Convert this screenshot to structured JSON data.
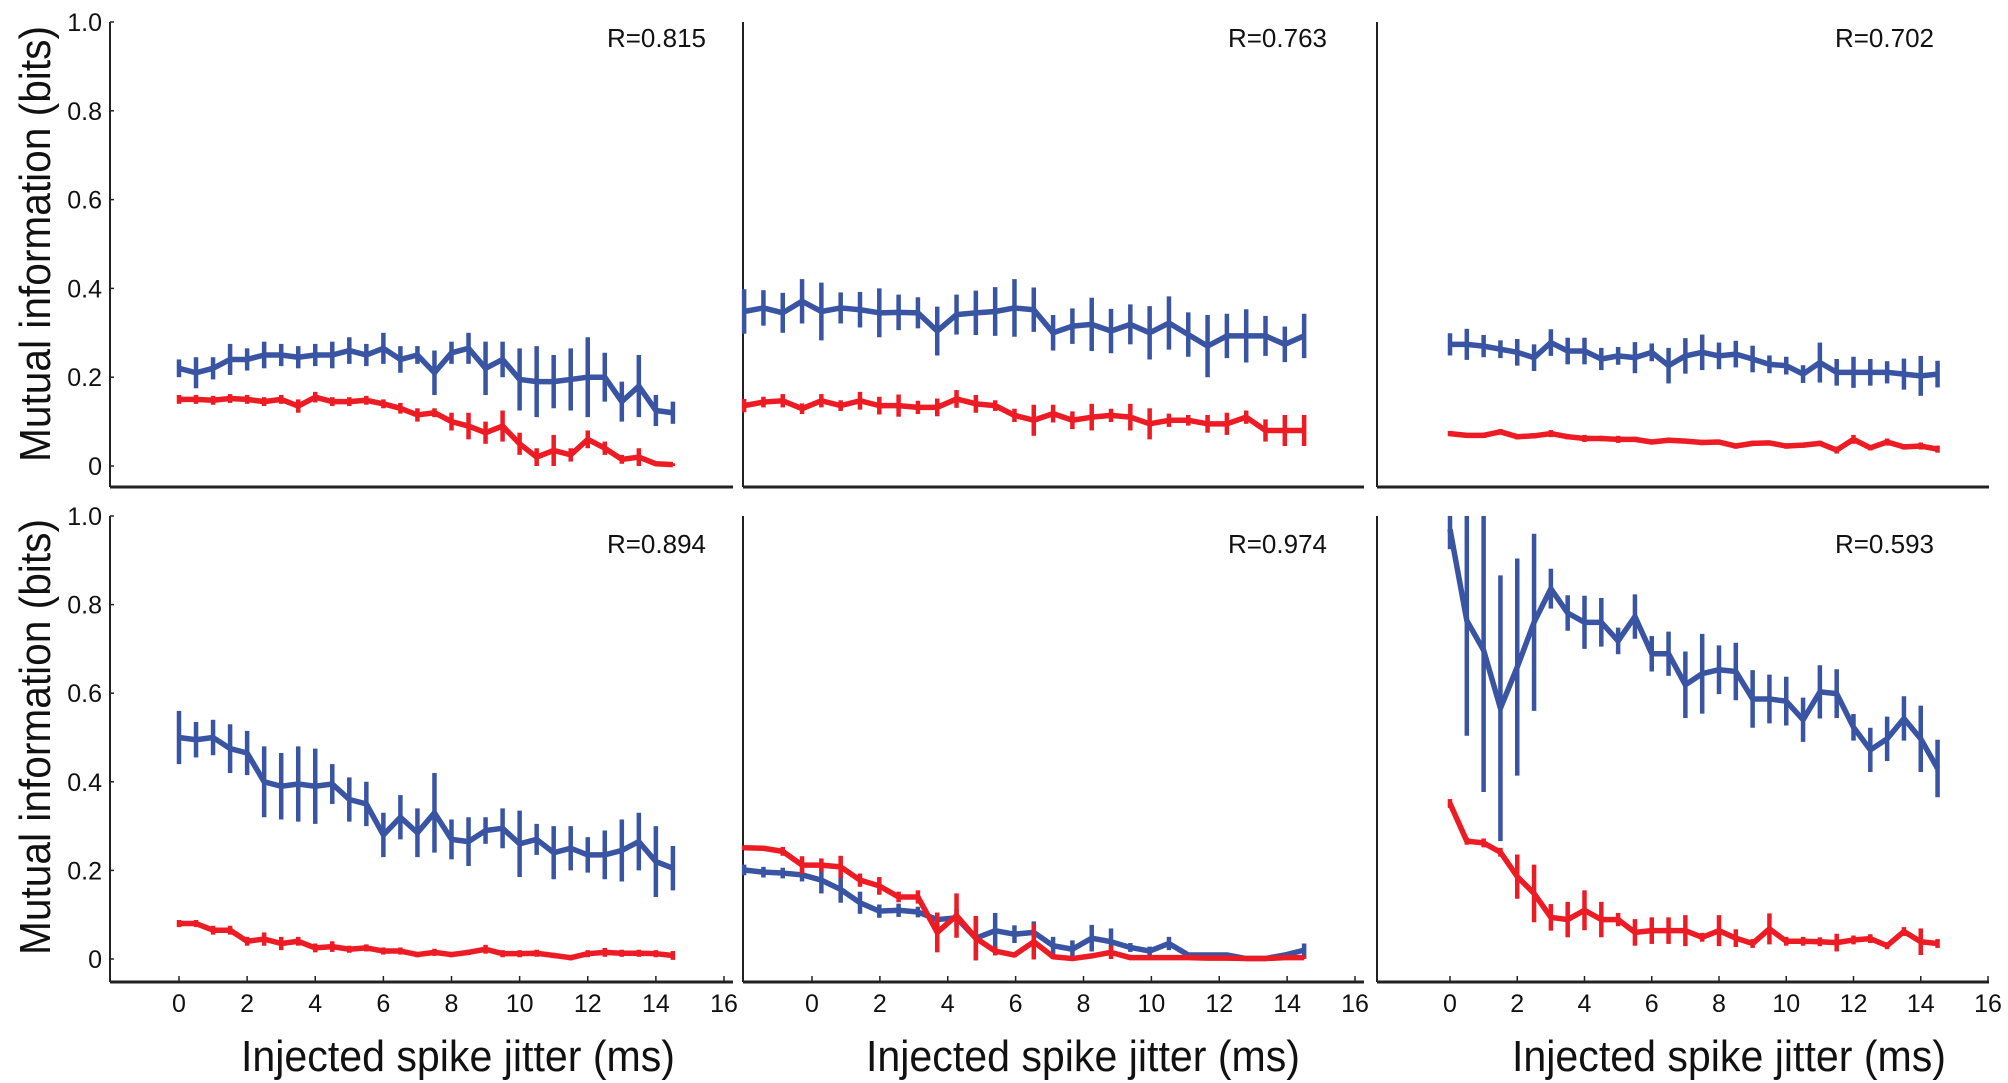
{
  "chart_data": {
    "type": "line",
    "ylabel": "Mutual information (bits)",
    "xlabel": "Injected spike jitter (ms)",
    "ylim": [
      0,
      1.0
    ],
    "xlim": [
      0,
      16
    ],
    "yticks": [
      "1.0",
      "0.8",
      "0.6",
      "0.4",
      "0.2",
      "0"
    ],
    "ytick_values": [
      1.0,
      0.8,
      0.6,
      0.4,
      0.2,
      0
    ],
    "xticks": [
      "0",
      "2",
      "4",
      "6",
      "8",
      "10",
      "12",
      "14",
      "16"
    ],
    "xtick_values": [
      0,
      2,
      4,
      6,
      8,
      10,
      12,
      14,
      16
    ],
    "grid": false,
    "colors": {
      "blue": "#3a54a4",
      "red": "#ed1c24"
    },
    "panels": [
      {
        "annotation": "R=0.815",
        "x_start": 0,
        "x_step": 0.5,
        "series": [
          {
            "name": "blue",
            "color": "#3a54a4",
            "values": [
              0.22,
              0.21,
              0.22,
              0.24,
              0.24,
              0.25,
              0.25,
              0.245,
              0.25,
              0.25,
              0.26,
              0.25,
              0.265,
              0.24,
              0.25,
              0.21,
              0.255,
              0.265,
              0.22,
              0.24,
              0.195,
              0.19,
              0.19,
              0.195,
              0.2,
              0.2,
              0.145,
              0.18,
              0.125,
              0.12
            ],
            "errors": [
              0.02,
              0.035,
              0.025,
              0.035,
              0.025,
              0.03,
              0.025,
              0.025,
              0.025,
              0.03,
              0.03,
              0.025,
              0.035,
              0.03,
              0.02,
              0.05,
              0.025,
              0.035,
              0.06,
              0.04,
              0.07,
              0.08,
              0.06,
              0.07,
              0.09,
              0.055,
              0.045,
              0.07,
              0.035,
              0.025
            ]
          },
          {
            "name": "red",
            "color": "#ed1c24",
            "values": [
              0.15,
              0.15,
              0.148,
              0.152,
              0.15,
              0.145,
              0.15,
              0.135,
              0.155,
              0.145,
              0.145,
              0.148,
              0.14,
              0.13,
              0.115,
              0.12,
              0.1,
              0.09,
              0.075,
              0.09,
              0.05,
              0.02,
              0.035,
              0.025,
              0.06,
              0.04,
              0.015,
              0.02,
              0.005,
              0.003
            ],
            "errors": [
              0.01,
              0.01,
              0.01,
              0.01,
              0.01,
              0.01,
              0.01,
              0.015,
              0.012,
              0.01,
              0.01,
              0.01,
              0.01,
              0.012,
              0.015,
              0.01,
              0.02,
              0.03,
              0.025,
              0.035,
              0.025,
              0.02,
              0.035,
              0.015,
              0.02,
              0.015,
              0.01,
              0.02,
              0.005,
              0.003
            ]
          }
        ]
      },
      {
        "annotation": "R=0.763",
        "x_start": -2,
        "x_step": 0.569,
        "series": [
          {
            "name": "blue",
            "color": "#3a54a4",
            "values": [
              0.348,
              0.356,
              0.345,
              0.371,
              0.348,
              0.356,
              0.352,
              0.345,
              0.346,
              0.345,
              0.304,
              0.341,
              0.345,
              0.348,
              0.356,
              0.352,
              0.3,
              0.315,
              0.319,
              0.304,
              0.319,
              0.3,
              0.322,
              0.296,
              0.27,
              0.293,
              0.293,
              0.293,
              0.274,
              0.293
            ],
            "errors": [
              0.05,
              0.04,
              0.045,
              0.05,
              0.065,
              0.035,
              0.04,
              0.055,
              0.04,
              0.035,
              0.055,
              0.045,
              0.05,
              0.055,
              0.065,
              0.05,
              0.04,
              0.04,
              0.06,
              0.05,
              0.045,
              0.06,
              0.06,
              0.05,
              0.07,
              0.05,
              0.06,
              0.045,
              0.04,
              0.05
            ]
          },
          {
            "name": "red",
            "color": "#ed1c24",
            "values": [
              0.136,
              0.144,
              0.147,
              0.129,
              0.147,
              0.136,
              0.147,
              0.136,
              0.136,
              0.132,
              0.132,
              0.151,
              0.14,
              0.136,
              0.114,
              0.103,
              0.118,
              0.103,
              0.11,
              0.114,
              0.11,
              0.095,
              0.103,
              0.103,
              0.095,
              0.095,
              0.11,
              0.08,
              0.08,
              0.08
            ],
            "errors": [
              0.015,
              0.012,
              0.015,
              0.012,
              0.015,
              0.012,
              0.02,
              0.02,
              0.025,
              0.015,
              0.02,
              0.02,
              0.02,
              0.012,
              0.015,
              0.035,
              0.02,
              0.02,
              0.03,
              0.015,
              0.03,
              0.035,
              0.015,
              0.012,
              0.02,
              0.025,
              0.015,
              0.025,
              0.035,
              0.035
            ]
          }
        ]
      },
      {
        "annotation": "R=0.702",
        "x_start": 0,
        "x_step": 0.5,
        "series": [
          {
            "name": "blue",
            "color": "#3a54a4",
            "values": [
              0.274,
              0.274,
              0.27,
              0.263,
              0.256,
              0.244,
              0.278,
              0.259,
              0.259,
              0.241,
              0.248,
              0.244,
              0.256,
              0.226,
              0.248,
              0.256,
              0.248,
              0.252,
              0.241,
              0.229,
              0.226,
              0.207,
              0.233,
              0.211,
              0.211,
              0.211,
              0.211,
              0.207,
              0.203,
              0.207
            ],
            "errors": [
              0.025,
              0.035,
              0.025,
              0.02,
              0.03,
              0.03,
              0.03,
              0.03,
              0.03,
              0.025,
              0.02,
              0.035,
              0.02,
              0.04,
              0.04,
              0.04,
              0.03,
              0.03,
              0.03,
              0.02,
              0.02,
              0.02,
              0.045,
              0.03,
              0.035,
              0.03,
              0.025,
              0.035,
              0.045,
              0.03
            ]
          },
          {
            "name": "red",
            "color": "#ed1c24",
            "values": [
              0.073,
              0.069,
              0.069,
              0.077,
              0.066,
              0.068,
              0.073,
              0.066,
              0.062,
              0.062,
              0.06,
              0.06,
              0.054,
              0.058,
              0.056,
              0.053,
              0.054,
              0.045,
              0.051,
              0.052,
              0.045,
              0.047,
              0.051,
              0.036,
              0.06,
              0.041,
              0.054,
              0.043,
              0.045,
              0.038
            ],
            "errors": [
              0.006,
              0.005,
              0.006,
              0.006,
              0.006,
              0.006,
              0.008,
              0.006,
              0.008,
              0.006,
              0.008,
              0.006,
              0.005,
              0.006,
              0.005,
              0.006,
              0.005,
              0.006,
              0.006,
              0.005,
              0.006,
              0.006,
              0.006,
              0.008,
              0.01,
              0.006,
              0.008,
              0.006,
              0.008,
              0.008
            ]
          }
        ]
      },
      {
        "annotation": "R=0.894",
        "x_start": 0,
        "x_step": 0.5,
        "series": [
          {
            "name": "blue",
            "color": "#3a54a4",
            "values": [
              0.5,
              0.495,
              0.5,
              0.475,
              0.465,
              0.4,
              0.39,
              0.395,
              0.39,
              0.395,
              0.36,
              0.35,
              0.28,
              0.32,
              0.285,
              0.33,
              0.27,
              0.265,
              0.29,
              0.295,
              0.26,
              0.27,
              0.24,
              0.25,
              0.235,
              0.235,
              0.245,
              0.265,
              0.22,
              0.205
            ],
            "errors": [
              0.06,
              0.04,
              0.04,
              0.055,
              0.05,
              0.08,
              0.075,
              0.085,
              0.085,
              0.045,
              0.05,
              0.05,
              0.05,
              0.05,
              0.055,
              0.09,
              0.045,
              0.055,
              0.03,
              0.045,
              0.075,
              0.035,
              0.06,
              0.05,
              0.04,
              0.055,
              0.07,
              0.065,
              0.08,
              0.05
            ]
          },
          {
            "name": "red",
            "color": "#ed1c24",
            "values": [
              0.08,
              0.08,
              0.065,
              0.065,
              0.04,
              0.045,
              0.035,
              0.04,
              0.025,
              0.028,
              0.022,
              0.025,
              0.018,
              0.018,
              0.01,
              0.015,
              0.01,
              0.015,
              0.022,
              0.012,
              0.012,
              0.013,
              0.008,
              0.003,
              0.012,
              0.015,
              0.013,
              0.013,
              0.012,
              0.008
            ],
            "errors": [
              0.008,
              0.008,
              0.01,
              0.01,
              0.01,
              0.015,
              0.015,
              0.01,
              0.01,
              0.012,
              0.008,
              0.008,
              0.008,
              0.008,
              0.006,
              0.008,
              0.006,
              0.006,
              0.01,
              0.008,
              0.008,
              0.008,
              0.006,
              0.006,
              0.008,
              0.01,
              0.008,
              0.008,
              0.008,
              0.01
            ]
          }
        ]
      },
      {
        "annotation": "R=0.974",
        "x_start": -2,
        "x_step": 0.569,
        "series": [
          {
            "name": "blue",
            "color": "#3a54a4",
            "values": [
              0.201,
              0.196,
              0.194,
              0.19,
              0.178,
              0.157,
              0.127,
              0.108,
              0.11,
              0.106,
              0.089,
              0.093,
              0.047,
              0.064,
              0.056,
              0.06,
              0.03,
              0.022,
              0.047,
              0.039,
              0.026,
              0.018,
              0.035,
              0.009,
              0.009,
              0.009,
              0.001,
              0.001,
              0.009,
              0.02
            ],
            "errors": [
              0.012,
              0.012,
              0.012,
              0.015,
              0.03,
              0.03,
              0.025,
              0.015,
              0.015,
              0.012,
              0.015,
              0.02,
              0.05,
              0.04,
              0.02,
              0.025,
              0.02,
              0.02,
              0.03,
              0.03,
              0.01,
              0.01,
              0.015,
              0.005,
              0.005,
              0.005,
              0.005,
              0.005,
              0.005,
              0.015
            ]
          },
          {
            "name": "red",
            "color": "#ed1c24",
            "values": [
              0.251,
              0.25,
              0.243,
              0.212,
              0.212,
              0.208,
              0.178,
              0.165,
              0.14,
              0.14,
              0.06,
              0.098,
              0.047,
              0.018,
              0.009,
              0.039,
              0.005,
              0.001,
              0.007,
              0.015,
              0.003,
              0.003,
              0.003,
              0.003,
              0.002,
              0.002,
              0.001,
              0.001,
              0.003,
              0.003
            ],
            "errors": [
              0.005,
              0.005,
              0.01,
              0.02,
              0.015,
              0.025,
              0.015,
              0.02,
              0.012,
              0.015,
              0.045,
              0.05,
              0.05,
              0.01,
              0.005,
              0.04,
              0.005,
              0.003,
              0.003,
              0.015,
              0.003,
              0.003,
              0.003,
              0.003,
              0.003,
              0.003,
              0.003,
              0.003,
              0.003,
              0.003
            ]
          }
        ]
      },
      {
        "annotation": "R=0.593",
        "x_start": 0,
        "x_step": 0.5,
        "series": [
          {
            "name": "blue",
            "color": "#3a54a4",
            "values": [
              0.97,
              0.764,
              0.697,
              0.566,
              0.659,
              0.76,
              0.836,
              0.781,
              0.76,
              0.76,
              0.718,
              0.773,
              0.689,
              0.689,
              0.619,
              0.644,
              0.653,
              0.649,
              0.587,
              0.587,
              0.582,
              0.54,
              0.603,
              0.599,
              0.523,
              0.472,
              0.497,
              0.543,
              0.497,
              0.43
            ],
            "errors": [
              0.045,
              0.26,
              0.32,
              0.3,
              0.245,
              0.2,
              0.045,
              0.04,
              0.06,
              0.055,
              0.03,
              0.05,
              0.04,
              0.05,
              0.075,
              0.09,
              0.055,
              0.065,
              0.065,
              0.055,
              0.055,
              0.05,
              0.06,
              0.055,
              0.03,
              0.05,
              0.05,
              0.05,
              0.075,
              0.065
            ]
          },
          {
            "name": "red",
            "color": "#ed1c24",
            "values": [
              0.351,
              0.266,
              0.262,
              0.241,
              0.186,
              0.148,
              0.094,
              0.089,
              0.11,
              0.089,
              0.089,
              0.06,
              0.064,
              0.064,
              0.064,
              0.049,
              0.064,
              0.047,
              0.035,
              0.068,
              0.04,
              0.04,
              0.039,
              0.037,
              0.043,
              0.046,
              0.03,
              0.062,
              0.039,
              0.035
            ],
            "errors": [
              0.01,
              0.008,
              0.01,
              0.01,
              0.05,
              0.065,
              0.03,
              0.04,
              0.045,
              0.04,
              0.015,
              0.03,
              0.03,
              0.03,
              0.035,
              0.01,
              0.035,
              0.02,
              0.01,
              0.035,
              0.01,
              0.01,
              0.01,
              0.02,
              0.01,
              0.01,
              0.008,
              0.01,
              0.03,
              0.01
            ]
          }
        ]
      }
    ]
  }
}
